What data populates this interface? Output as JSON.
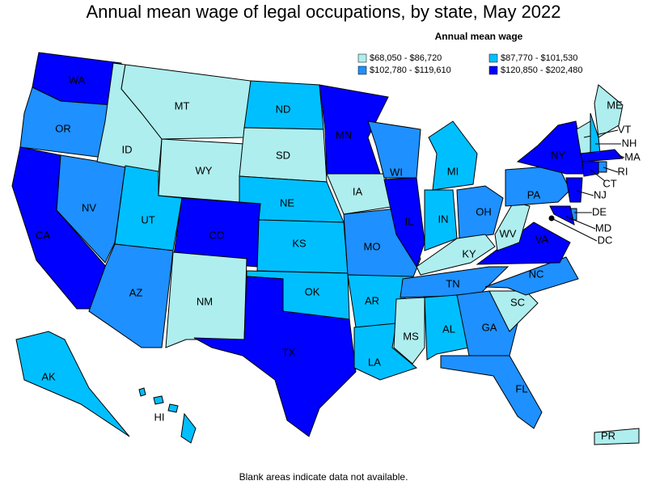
{
  "title": "Annual mean wage of legal occupations, by state, May 2022",
  "legend": {
    "title": "Annual mean wage",
    "items": [
      {
        "label": "$68,050 - $86,720",
        "color": "#aeeeee"
      },
      {
        "label": "$87,770 - $101,530",
        "color": "#00bfff"
      },
      {
        "label": "$102,780 - $119,610",
        "color": "#1e90ff"
      },
      {
        "label": "$120,850 - $202,480",
        "color": "#0000ff"
      }
    ]
  },
  "states": [
    {
      "label": "WA",
      "color": "#0000ff"
    },
    {
      "label": "OR",
      "color": "#1e90ff"
    },
    {
      "label": "CA",
      "color": "#0000ff"
    },
    {
      "label": "NV",
      "color": "#1e90ff"
    },
    {
      "label": "ID",
      "color": "#aeeeee"
    },
    {
      "label": "MT",
      "color": "#aeeeee"
    },
    {
      "label": "WY",
      "color": "#aeeeee"
    },
    {
      "label": "UT",
      "color": "#00bfff"
    },
    {
      "label": "CO",
      "color": "#0000ff"
    },
    {
      "label": "AZ",
      "color": "#1e90ff"
    },
    {
      "label": "NM",
      "color": "#aeeeee"
    },
    {
      "label": "ND",
      "color": "#00bfff"
    },
    {
      "label": "SD",
      "color": "#aeeeee"
    },
    {
      "label": "NE",
      "color": "#00bfff"
    },
    {
      "label": "KS",
      "color": "#00bfff"
    },
    {
      "label": "OK",
      "color": "#00bfff"
    },
    {
      "label": "TX",
      "color": "#0000ff"
    },
    {
      "label": "MN",
      "color": "#0000ff"
    },
    {
      "label": "IA",
      "color": "#aeeeee"
    },
    {
      "label": "MO",
      "color": "#1e90ff"
    },
    {
      "label": "AR",
      "color": "#00bfff"
    },
    {
      "label": "LA",
      "color": "#00bfff"
    },
    {
      "label": "WI",
      "color": "#1e90ff"
    },
    {
      "label": "IL",
      "color": "#0000ff"
    },
    {
      "label": "MI",
      "color": "#00bfff"
    },
    {
      "label": "IN",
      "color": "#00bfff"
    },
    {
      "label": "OH",
      "color": "#1e90ff"
    },
    {
      "label": "KY",
      "color": "#aeeeee"
    },
    {
      "label": "TN",
      "color": "#1e90ff"
    },
    {
      "label": "MS",
      "color": "#aeeeee"
    },
    {
      "label": "AL",
      "color": "#00bfff"
    },
    {
      "label": "GA",
      "color": "#1e90ff"
    },
    {
      "label": "FL",
      "color": "#1e90ff"
    },
    {
      "label": "SC",
      "color": "#aeeeee"
    },
    {
      "label": "NC",
      "color": "#1e90ff"
    },
    {
      "label": "VA",
      "color": "#0000ff"
    },
    {
      "label": "WV",
      "color": "#aeeeee"
    },
    {
      "label": "PA",
      "color": "#1e90ff"
    },
    {
      "label": "NY",
      "color": "#0000ff"
    },
    {
      "label": "ME",
      "color": "#aeeeee"
    },
    {
      "label": "VT",
      "color": "#aeeeee"
    },
    {
      "label": "NH",
      "color": "#00bfff"
    },
    {
      "label": "MA",
      "color": "#0000ff"
    },
    {
      "label": "CT",
      "color": "#0000ff"
    },
    {
      "label": "RI",
      "color": "#1e90ff"
    },
    {
      "label": "NJ",
      "color": "#0000ff"
    },
    {
      "label": "DE",
      "color": "#1e90ff"
    },
    {
      "label": "MD",
      "color": "#0000ff"
    },
    {
      "label": "DC",
      "color": "#000000"
    },
    {
      "label": "AK",
      "color": "#00bfff"
    },
    {
      "label": "HI",
      "color": "#00bfff"
    },
    {
      "label": "PR",
      "color": "#aeeeee"
    }
  ],
  "footnote": "Blank areas indicate data not available."
}
